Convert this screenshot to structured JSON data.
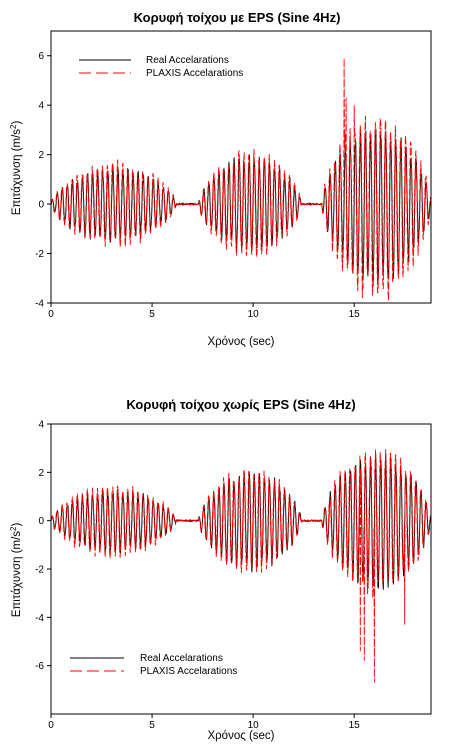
{
  "chart_data": [
    {
      "type": "line",
      "title": "Κορυφή τοίχου με EPS (Sine 4Hz)",
      "xlabel": "Χρόνος (sec)",
      "ylabel_main": "Επιτάχυνση (m/s",
      "ylabel_sup": "2",
      "ylabel_tail": ")",
      "xlim": [
        0,
        18.8
      ],
      "ylim": [
        -4,
        7
      ],
      "xticks": [
        0,
        5,
        10,
        15
      ],
      "yticks": [
        -4,
        -2,
        0,
        2,
        4,
        6
      ],
      "legend_position": "top-left",
      "series": [
        {
          "name": "Real Accelarations",
          "color": "#000000",
          "style": "solid",
          "bursts": [
            {
              "t": [
                0.0,
                6.2
              ],
              "peak": 1.4,
              "freq": 4
            },
            {
              "t": [
                7.3,
                12.4
              ],
              "peak": 1.8,
              "freq": 4
            },
            {
              "t": [
                13.4,
                18.8
              ],
              "peak": 3.0,
              "freq": 4
            }
          ]
        },
        {
          "name": "PLAXIS Accelarations",
          "color": "#ff0000",
          "style": "dashed",
          "bursts": [
            {
              "t": [
                0.0,
                6.2
              ],
              "peak": 1.6,
              "freq": 4
            },
            {
              "t": [
                7.3,
                12.4
              ],
              "peak": 2.0,
              "freq": 4
            },
            {
              "t": [
                13.4,
                18.8
              ],
              "peak": 3.5,
              "freq": 4
            }
          ],
          "extremes": [
            {
              "x": 14.5,
              "y": 5.9
            },
            {
              "x": 14.6,
              "y": 4.3
            },
            {
              "x": 15.0,
              "y": 4.0
            },
            {
              "x": 15.4,
              "y": -3.8
            },
            {
              "x": 15.9,
              "y": -3.7
            },
            {
              "x": 16.7,
              "y": -3.9
            }
          ]
        }
      ]
    },
    {
      "type": "line",
      "title": "Κορυφή τοίχου χωρίς EPS (Sine 4Hz)",
      "xlabel": "Χρόνος (sec)",
      "ylabel_main": "Επιτάχυνση (m/s",
      "ylabel_sup": "2",
      "ylabel_tail": ")",
      "xlim": [
        0,
        18.8
      ],
      "ylim": [
        -8,
        4
      ],
      "xticks": [
        0,
        5,
        10,
        15
      ],
      "yticks": [
        -6,
        -4,
        -2,
        0,
        2,
        4
      ],
      "legend_position": "bottom-left",
      "series": [
        {
          "name": "Real Accelarations",
          "color": "#000000",
          "style": "solid",
          "bursts": [
            {
              "t": [
                0.0,
                6.2
              ],
              "peak": 1.2,
              "freq": 4
            },
            {
              "t": [
                7.3,
                12.4
              ],
              "peak": 1.9,
              "freq": 4
            },
            {
              "t": [
                13.4,
                18.8
              ],
              "peak": 2.6,
              "freq": 4
            }
          ]
        },
        {
          "name": "PLAXIS Accelarations",
          "color": "#ff0000",
          "style": "dashed",
          "bursts": [
            {
              "t": [
                0.0,
                6.2
              ],
              "peak": 1.4,
              "freq": 4
            },
            {
              "t": [
                7.3,
                12.4
              ],
              "peak": 2.0,
              "freq": 4
            },
            {
              "t": [
                13.4,
                18.8
              ],
              "peak": 2.8,
              "freq": 4
            }
          ],
          "extremes": [
            {
              "x": 15.3,
              "y": -5.4
            },
            {
              "x": 15.5,
              "y": -5.8
            },
            {
              "x": 16.0,
              "y": -6.7
            },
            {
              "x": 17.5,
              "y": -4.3
            }
          ]
        }
      ]
    }
  ]
}
